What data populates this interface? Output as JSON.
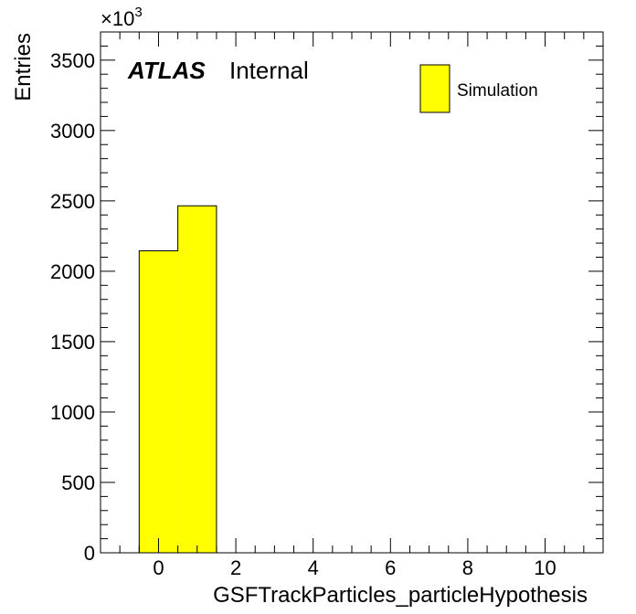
{
  "chart_data": {
    "type": "bar",
    "title": "",
    "xlabel": "GSFTrackParticles_particleHypothesis",
    "ylabel": "Entries",
    "y_multiplier": "×10",
    "y_multiplier_exponent": "3",
    "xlim": [
      -1.5,
      11.5
    ],
    "ylim": [
      0,
      3700
    ],
    "x_major_ticks": [
      0,
      2,
      4,
      6,
      8,
      10
    ],
    "y_major_ticks": [
      0,
      500,
      1000,
      1500,
      2000,
      2500,
      3000,
      3500
    ],
    "bins": [
      {
        "low": -0.5,
        "high": 0.5,
        "value": 2145
      },
      {
        "low": 0.5,
        "high": 1.5,
        "value": 2465
      }
    ],
    "bar_color": "#ffff00",
    "series": [
      {
        "name": "Simulation",
        "color": "#ffff00"
      }
    ],
    "legend": {
      "label": "Simulation",
      "position": "top-right"
    },
    "annotation": {
      "atlas": "ATLAS",
      "status": "Internal"
    },
    "grid": false
  }
}
